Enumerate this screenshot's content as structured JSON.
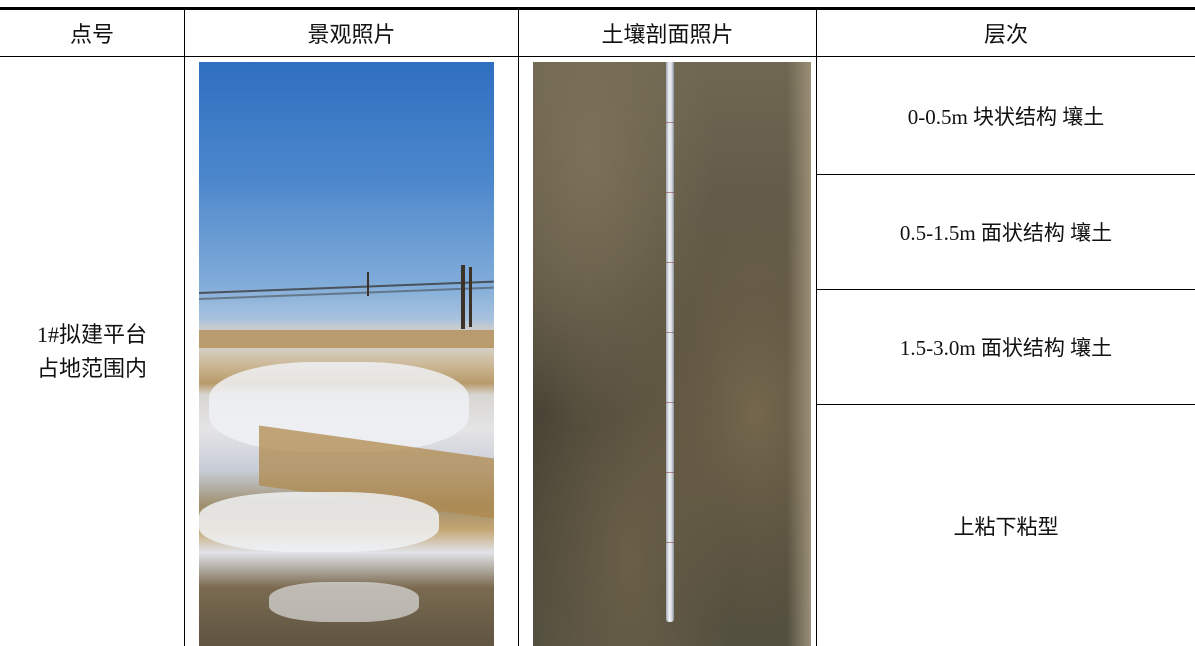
{
  "header": {
    "col_point": "点号",
    "col_landscape": "景观照片",
    "col_soil_photo": "土壤剖面照片",
    "col_layer": "层次"
  },
  "row": {
    "point_line1": "1#拟建平台",
    "point_line2": "占地范围内",
    "layers": [
      "0-0.5m 块状结构  壤土",
      "0.5-1.5m 面状结构  壤土",
      "1.5-3.0m 面状结构  壤土",
      "上粘下粘型"
    ]
  },
  "icons": {
    "landscape_photo": "snowy-field-landscape-photo",
    "soil_photo": "soil-profile-with-measuring-tape-photo"
  }
}
